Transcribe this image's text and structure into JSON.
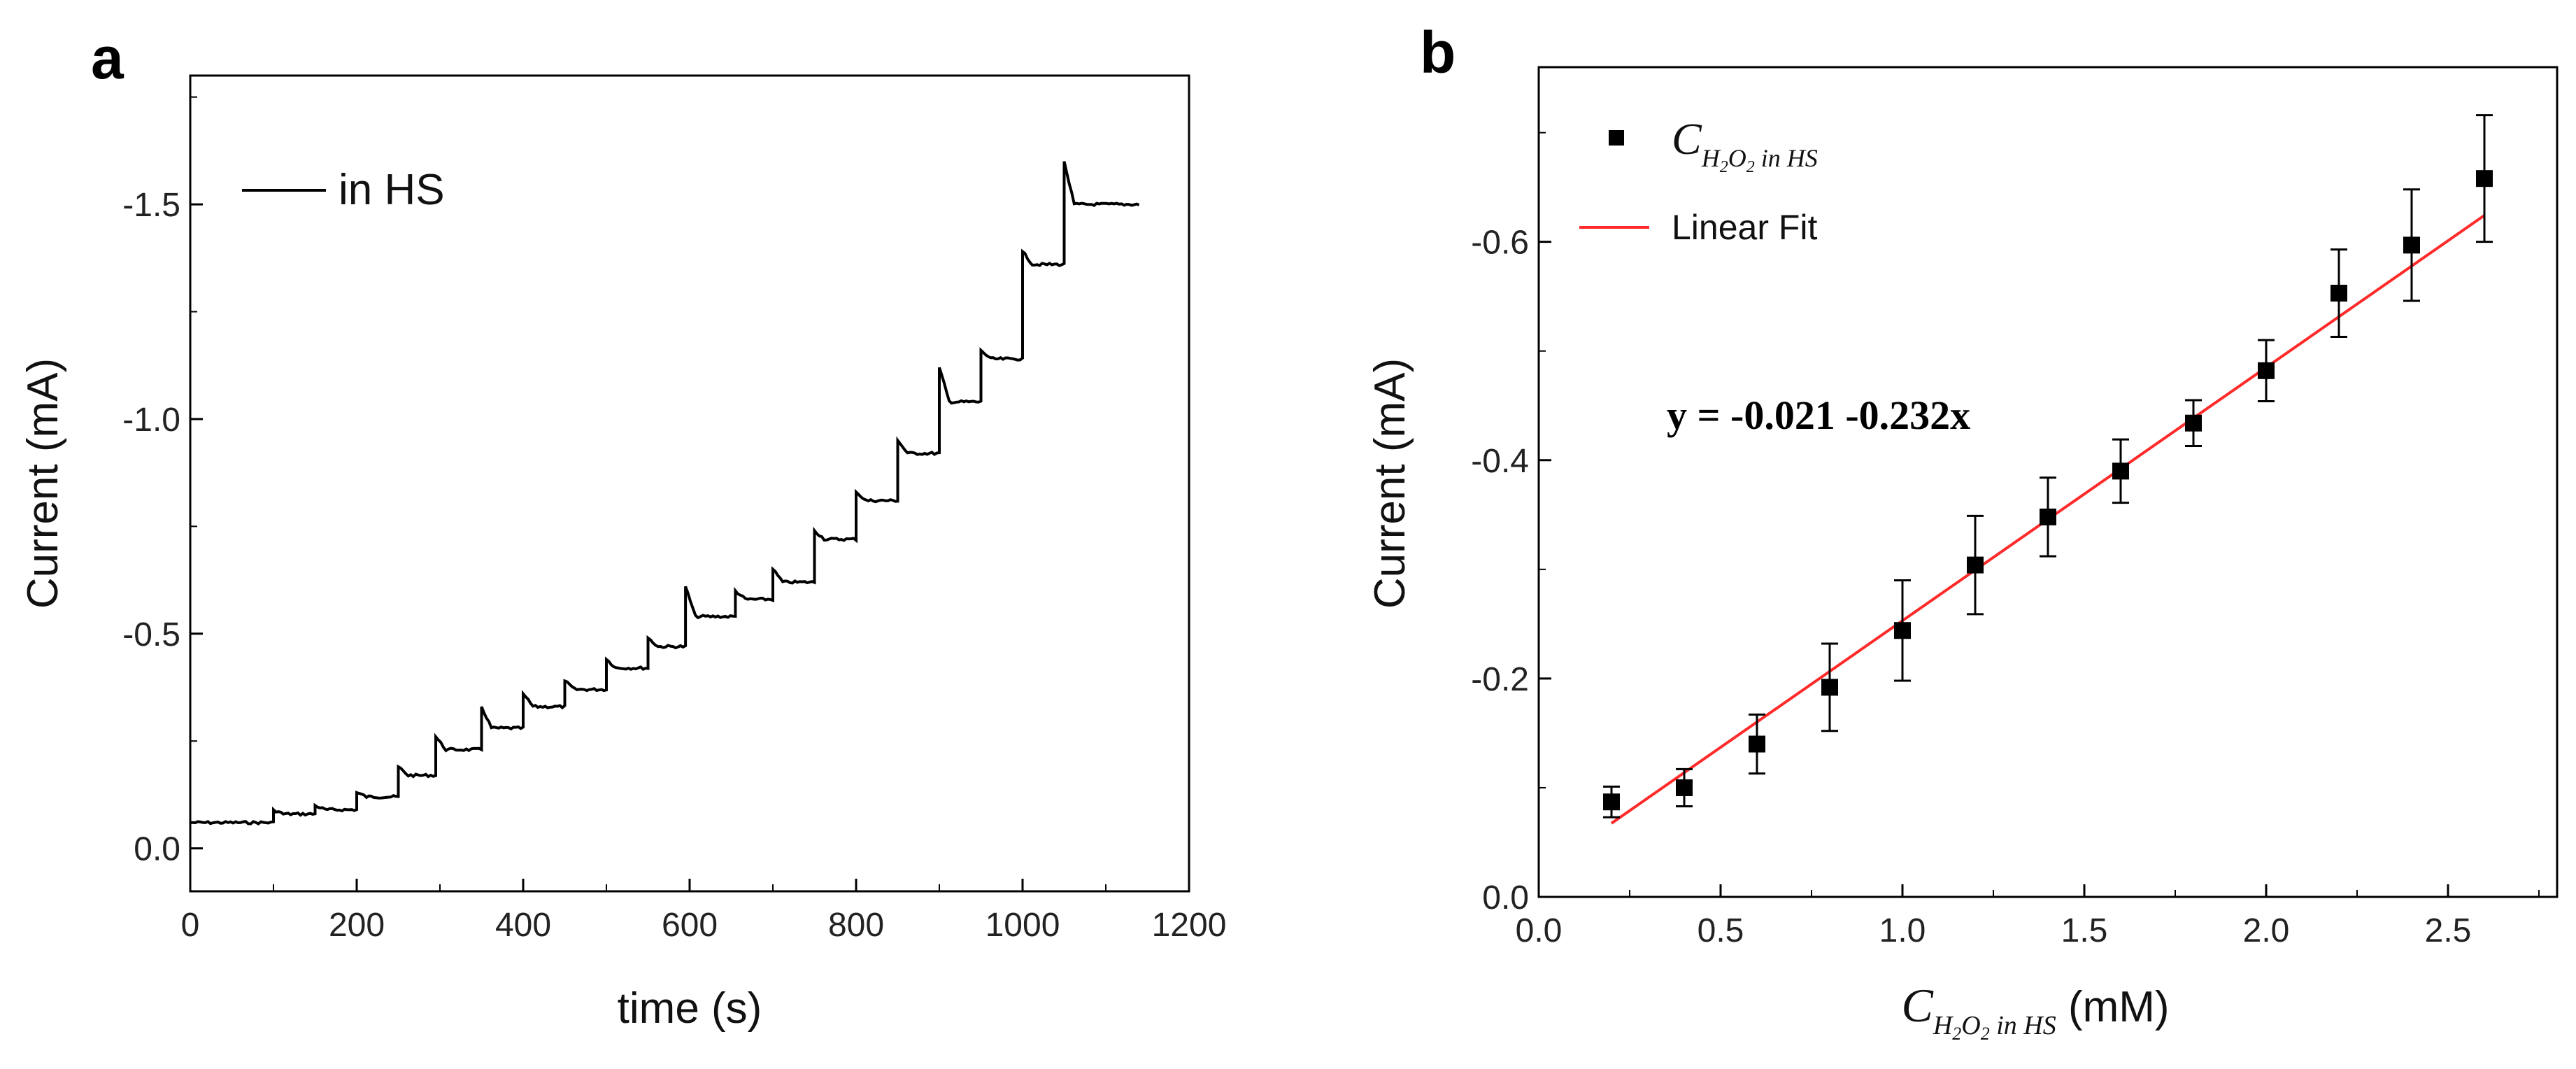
{
  "chart_data": [
    {
      "panel": "a",
      "type": "line",
      "xlabel": "time (s)",
      "ylabel": "Current (mA)",
      "xlim": [
        0,
        1200
      ],
      "ylim": [
        0.1,
        -1.8
      ],
      "xticks": [
        0,
        200,
        400,
        600,
        800,
        1000,
        1200
      ],
      "yticks": [
        0.0,
        -0.5,
        -1.0,
        -1.5
      ],
      "xtick_labels": [
        "0",
        "200",
        "400",
        "600",
        "800",
        "1000",
        "1200"
      ],
      "ytick_labels": [
        "0.0",
        "-0.5",
        "-1.0",
        "-1.5"
      ],
      "legend": "in HS",
      "series": [
        {
          "name": "in HS",
          "steps": [
            {
              "t": 0,
              "level": -0.06,
              "spike": -0.06
            },
            {
              "t": 100,
              "level": -0.08,
              "spike": -0.09
            },
            {
              "t": 150,
              "level": -0.09,
              "spike": -0.1
            },
            {
              "t": 200,
              "level": -0.12,
              "spike": -0.13
            },
            {
              "t": 250,
              "level": -0.17,
              "spike": -0.19
            },
            {
              "t": 295,
              "level": -0.23,
              "spike": -0.26
            },
            {
              "t": 350,
              "level": -0.28,
              "spike": -0.33
            },
            {
              "t": 400,
              "level": -0.33,
              "spike": -0.36
            },
            {
              "t": 450,
              "level": -0.37,
              "spike": -0.39
            },
            {
              "t": 500,
              "level": -0.42,
              "spike": -0.44
            },
            {
              "t": 550,
              "level": -0.47,
              "spike": -0.49
            },
            {
              "t": 595,
              "level": -0.54,
              "spike": -0.61
            },
            {
              "t": 655,
              "level": -0.58,
              "spike": -0.6
            },
            {
              "t": 700,
              "level": -0.62,
              "spike": -0.65
            },
            {
              "t": 750,
              "level": -0.72,
              "spike": -0.74
            },
            {
              "t": 800,
              "level": -0.81,
              "spike": -0.83
            },
            {
              "t": 850,
              "level": -0.92,
              "spike": -0.95
            },
            {
              "t": 900,
              "level": -1.04,
              "spike": -1.12
            },
            {
              "t": 950,
              "level": -1.14,
              "spike": -1.16
            },
            {
              "t": 1000,
              "level": -1.36,
              "spike": -1.39
            },
            {
              "t": 1050,
              "level": -1.5,
              "spike": -1.6
            }
          ],
          "end_time": 1140
        }
      ]
    },
    {
      "panel": "b",
      "type": "scatter",
      "xlabel_suffix": "(mM)",
      "ylabel": "Current (mA)",
      "xlim": [
        0,
        2.8
      ],
      "ylim": [
        0,
        -0.76
      ],
      "xticks": [
        0.0,
        0.5,
        1.0,
        1.5,
        2.0,
        2.5
      ],
      "yticks": [
        0.0,
        -0.2,
        -0.4,
        -0.6
      ],
      "xtick_labels": [
        "0.0",
        "0.5",
        "1.0",
        "1.5",
        "2.0",
        "2.5"
      ],
      "ytick_labels": [
        "0.0",
        "-0.2",
        "-0.4",
        "-0.6"
      ],
      "series": [
        {
          "name": "C H2O2 in HS",
          "x": [
            0.2,
            0.4,
            0.6,
            0.8,
            1.0,
            1.2,
            1.4,
            1.6,
            1.8,
            2.0,
            2.2,
            2.4,
            2.6
          ],
          "y": [
            -0.087,
            -0.1,
            -0.14,
            -0.192,
            -0.244,
            -0.304,
            -0.348,
            -0.39,
            -0.434,
            -0.482,
            -0.553,
            -0.597,
            -0.658
          ],
          "err": [
            0.014,
            0.017,
            0.027,
            0.04,
            0.046,
            0.045,
            0.036,
            0.029,
            0.021,
            0.028,
            0.04,
            0.051,
            0.058
          ]
        }
      ],
      "fit": {
        "name": "Linear Fit",
        "intercept": -0.021,
        "slope": -0.232,
        "x_range": [
          0.2,
          2.6
        ],
        "color": "#ff2a2a"
      },
      "equation": "y = -0.021 -0.232x",
      "legend": {
        "symbol_label_main": "C",
        "symbol_label_sub_1": "H",
        "symbol_label_sub_2": "2",
        "symbol_label_sub_3": "O",
        "symbol_label_sub_4": "2",
        "symbol_label_sub_5": " in HS",
        "fit_label": "Linear Fit"
      }
    }
  ],
  "panel_labels": {
    "a": "a",
    "b": "b"
  }
}
